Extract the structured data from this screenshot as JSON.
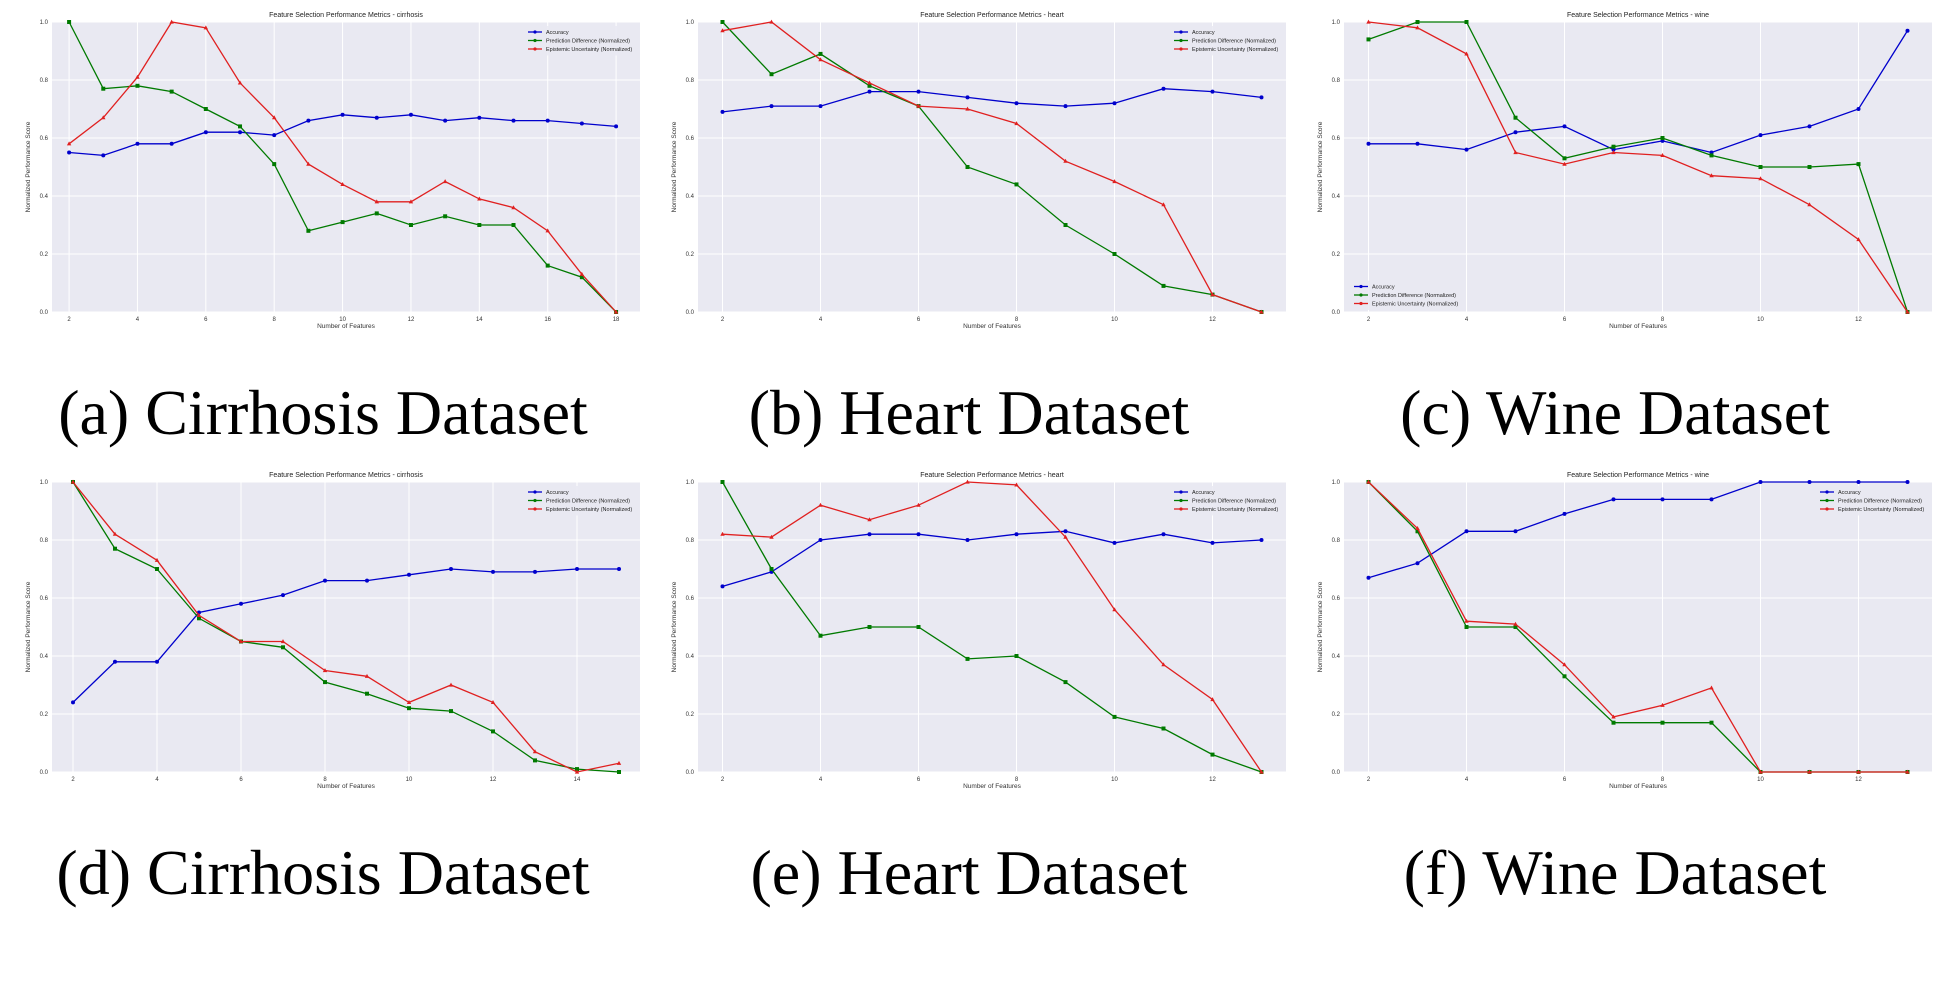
{
  "figure": {
    "captions": [
      "(a) Cirrhosis Dataset",
      "(b) Heart Dataset",
      "(c) Wine Dataset",
      "(d) Cirrhosis Dataset",
      "(e) Heart Dataset",
      "(f) Wine Dataset"
    ]
  },
  "colors": {
    "accuracy": "#0000cc",
    "prediction_difference": "#007a00",
    "epistemic_uncertainty": "#e02020",
    "plot_background": "#e9e9f2"
  },
  "chart_data": [
    {
      "type": "line",
      "title": "Feature Selection Performance Metrics - cirrhosis",
      "xlabel": "Number of Features",
      "ylabel": "Normalized Performance Score",
      "xlim": [
        1.5,
        18.7
      ],
      "ylim": [
        0,
        1
      ],
      "xticks": [
        2,
        4,
        6,
        8,
        10,
        12,
        14,
        16,
        18
      ],
      "yticks": [
        0.0,
        0.2,
        0.4,
        0.6,
        0.8,
        1.0
      ],
      "grid": true,
      "legend": "top-right",
      "x": [
        2,
        3,
        4,
        5,
        6,
        7,
        8,
        9,
        10,
        11,
        12,
        13,
        14,
        15,
        16,
        17,
        18
      ],
      "series": [
        {
          "name": "Accuracy",
          "marker": "circle",
          "values": [
            0.55,
            0.54,
            0.58,
            0.58,
            0.62,
            0.62,
            0.61,
            0.66,
            0.68,
            0.67,
            0.68,
            0.66,
            0.67,
            0.66,
            0.66,
            0.65,
            0.64
          ]
        },
        {
          "name": "Prediction Difference (Normalized)",
          "marker": "square",
          "values": [
            1.0,
            0.77,
            0.78,
            0.76,
            0.7,
            0.64,
            0.51,
            0.28,
            0.31,
            0.34,
            0.3,
            0.33,
            0.3,
            0.3,
            0.16,
            0.12,
            0.0
          ]
        },
        {
          "name": "Epistemic Uncertainty (Normalized)",
          "marker": "triangle",
          "values": [
            0.58,
            0.67,
            0.81,
            1.0,
            0.98,
            0.79,
            0.67,
            0.51,
            0.44,
            0.38,
            0.38,
            0.45,
            0.39,
            0.36,
            0.28,
            0.13,
            0.0
          ]
        }
      ]
    },
    {
      "type": "line",
      "title": "Feature Selection Performance Metrics - heart",
      "xlabel": "Number of Features",
      "ylabel": "Normalized Performance Score",
      "xlim": [
        1.5,
        13.5
      ],
      "ylim": [
        0,
        1
      ],
      "xticks": [
        2,
        4,
        6,
        8,
        10,
        12
      ],
      "yticks": [
        0.0,
        0.2,
        0.4,
        0.6,
        0.8,
        1.0
      ],
      "grid": true,
      "legend": "top-right",
      "x": [
        2,
        3,
        4,
        5,
        6,
        7,
        8,
        9,
        10,
        11,
        12,
        13
      ],
      "series": [
        {
          "name": "Accuracy",
          "marker": "circle",
          "values": [
            0.69,
            0.71,
            0.71,
            0.76,
            0.76,
            0.74,
            0.72,
            0.71,
            0.72,
            0.77,
            0.76,
            0.74
          ]
        },
        {
          "name": "Prediction Difference (Normalized)",
          "marker": "square",
          "values": [
            1.0,
            0.82,
            0.89,
            0.78,
            0.71,
            0.5,
            0.44,
            0.3,
            0.2,
            0.09,
            0.06,
            0.0
          ]
        },
        {
          "name": "Epistemic Uncertainty (Normalized)",
          "marker": "triangle",
          "values": [
            0.97,
            1.0,
            0.87,
            0.79,
            0.71,
            0.7,
            0.65,
            0.52,
            0.45,
            0.37,
            0.06,
            0.0
          ]
        }
      ]
    },
    {
      "type": "line",
      "title": "Feature Selection Performance Metrics - wine",
      "xlabel": "Number of Features",
      "ylabel": "Normalized Performance Score",
      "xlim": [
        1.5,
        13.5
      ],
      "ylim": [
        0,
        1
      ],
      "xticks": [
        2,
        4,
        6,
        8,
        10,
        12
      ],
      "yticks": [
        0.0,
        0.2,
        0.4,
        0.6,
        0.8,
        1.0
      ],
      "grid": true,
      "legend": "bottom-left",
      "x": [
        2,
        3,
        4,
        5,
        6,
        7,
        8,
        9,
        10,
        11,
        12,
        13
      ],
      "series": [
        {
          "name": "Accuracy",
          "marker": "circle",
          "values": [
            0.58,
            0.58,
            0.56,
            0.62,
            0.64,
            0.56,
            0.59,
            0.55,
            0.61,
            0.64,
            0.7,
            0.97
          ]
        },
        {
          "name": "Prediction Difference (Normalized)",
          "marker": "square",
          "values": [
            0.94,
            1.0,
            1.0,
            0.67,
            0.53,
            0.57,
            0.6,
            0.54,
            0.5,
            0.5,
            0.51,
            0.0
          ]
        },
        {
          "name": "Epistemic Uncertainty (Normalized)",
          "marker": "triangle",
          "values": [
            1.0,
            0.98,
            0.89,
            0.55,
            0.51,
            0.55,
            0.54,
            0.47,
            0.46,
            0.37,
            0.25,
            0.0
          ]
        }
      ]
    },
    {
      "type": "line",
      "title": "Feature Selection Performance Metrics - cirrhosis",
      "xlabel": "Number of Features",
      "ylabel": "Normalized Performance Score",
      "xlim": [
        1.5,
        15.5
      ],
      "ylim": [
        0,
        1
      ],
      "xticks": [
        2,
        4,
        6,
        8,
        10,
        12,
        14
      ],
      "yticks": [
        0.0,
        0.2,
        0.4,
        0.6,
        0.8,
        1.0
      ],
      "grid": true,
      "legend": "top-right",
      "x": [
        2,
        3,
        4,
        5,
        6,
        7,
        8,
        9,
        10,
        11,
        12,
        13,
        14,
        15
      ],
      "series": [
        {
          "name": "Accuracy",
          "marker": "circle",
          "values": [
            0.24,
            0.38,
            0.38,
            0.55,
            0.58,
            0.61,
            0.66,
            0.66,
            0.68,
            0.7,
            0.69,
            0.69,
            0.7,
            0.7
          ]
        },
        {
          "name": "Prediction Difference (Normalized)",
          "marker": "square",
          "values": [
            1.0,
            0.77,
            0.7,
            0.53,
            0.45,
            0.43,
            0.31,
            0.27,
            0.22,
            0.21,
            0.14,
            0.04,
            0.01,
            0.0
          ]
        },
        {
          "name": "Epistemic Uncertainty (Normalized)",
          "marker": "triangle",
          "values": [
            1.0,
            0.82,
            0.73,
            0.54,
            0.45,
            0.45,
            0.35,
            0.33,
            0.24,
            0.3,
            0.24,
            0.07,
            0.0,
            0.03
          ]
        }
      ]
    },
    {
      "type": "line",
      "title": "Feature Selection Performance Metrics - heart",
      "xlabel": "Number of Features",
      "ylabel": "Normalized Performance Score",
      "xlim": [
        1.5,
        13.5
      ],
      "ylim": [
        0,
        1
      ],
      "xticks": [
        2,
        4,
        6,
        8,
        10,
        12
      ],
      "yticks": [
        0.0,
        0.2,
        0.4,
        0.6,
        0.8,
        1.0
      ],
      "grid": true,
      "legend": "top-right",
      "x": [
        2,
        3,
        4,
        5,
        6,
        7,
        8,
        9,
        10,
        11,
        12,
        13
      ],
      "series": [
        {
          "name": "Accuracy",
          "marker": "circle",
          "values": [
            0.64,
            0.69,
            0.8,
            0.82,
            0.82,
            0.8,
            0.82,
            0.83,
            0.79,
            0.82,
            0.79,
            0.8
          ]
        },
        {
          "name": "Prediction Difference (Normalized)",
          "marker": "square",
          "values": [
            1.0,
            0.7,
            0.47,
            0.5,
            0.5,
            0.39,
            0.4,
            0.31,
            0.19,
            0.15,
            0.06,
            0.0
          ]
        },
        {
          "name": "Epistemic Uncertainty (Normalized)",
          "marker": "triangle",
          "values": [
            0.82,
            0.81,
            0.92,
            0.87,
            0.92,
            1.0,
            0.99,
            0.81,
            0.56,
            0.37,
            0.25,
            0.0
          ]
        }
      ]
    },
    {
      "type": "line",
      "title": "Feature Selection Performance Metrics - wine",
      "xlabel": "Number of Features",
      "ylabel": "Normalized Performance Score",
      "xlim": [
        1.5,
        13.5
      ],
      "ylim": [
        0,
        1
      ],
      "xticks": [
        2,
        4,
        6,
        8,
        10,
        12
      ],
      "yticks": [
        0.0,
        0.2,
        0.4,
        0.6,
        0.8,
        1.0
      ],
      "grid": true,
      "legend": "top-right",
      "x": [
        2,
        3,
        4,
        5,
        6,
        7,
        8,
        9,
        10,
        11,
        12,
        13
      ],
      "series": [
        {
          "name": "Accuracy",
          "marker": "circle",
          "values": [
            0.67,
            0.72,
            0.83,
            0.83,
            0.89,
            0.94,
            0.94,
            0.94,
            1.0,
            1.0,
            1.0,
            1.0
          ]
        },
        {
          "name": "Prediction Difference (Normalized)",
          "marker": "square",
          "values": [
            1.0,
            0.83,
            0.5,
            0.5,
            0.33,
            0.17,
            0.17,
            0.17,
            0.0,
            0.0,
            0.0,
            0.0
          ]
        },
        {
          "name": "Epistemic Uncertainty (Normalized)",
          "marker": "triangle",
          "values": [
            1.0,
            0.84,
            0.52,
            0.51,
            0.37,
            0.19,
            0.23,
            0.29,
            0.0,
            0.0,
            0.0,
            0.0
          ]
        }
      ]
    }
  ]
}
